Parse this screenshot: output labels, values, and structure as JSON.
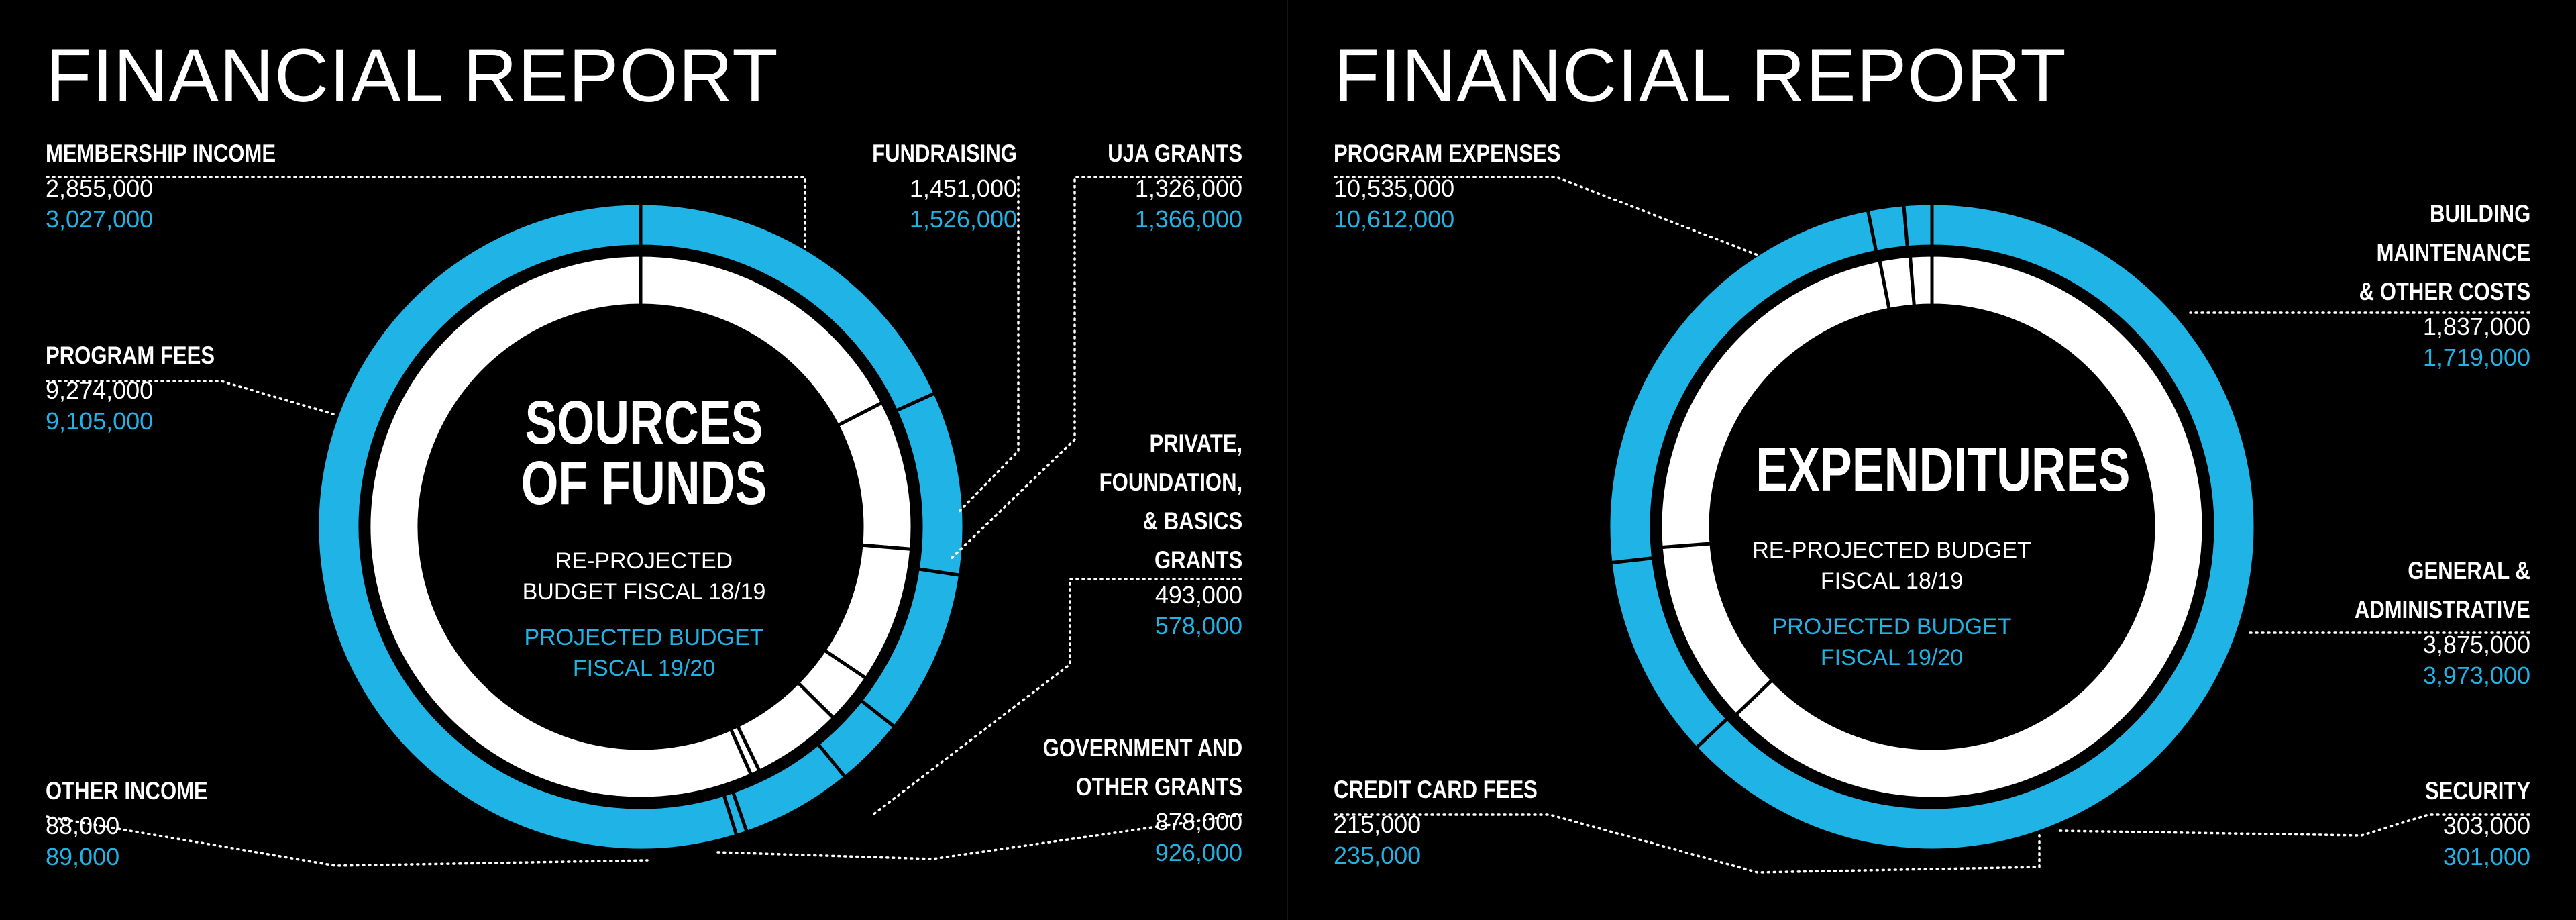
{
  "colors": {
    "accent": "#1fb3e6",
    "background": "#000000",
    "ring_inner": "#ffffff",
    "text": "#ffffff"
  },
  "sources": {
    "title": "FINANCIAL REPORT",
    "center_title_1": "SOURCES",
    "center_title_2": "OF FUNDS",
    "legend_white_1": "RE-PROJECTED",
    "legend_white_2": "BUDGET FISCAL 18/19",
    "legend_blue_1": "PROJECTED BUDGET",
    "legend_blue_2": "FISCAL 19/20",
    "items": [
      {
        "name_lines": [
          "MEMBERSHIP INCOME"
        ],
        "value_1819": "2,855,000",
        "value_1920": "3,027,000"
      },
      {
        "name_lines": [
          "FUNDRAISING"
        ],
        "value_1819": "1,451,000",
        "value_1920": "1,526,000"
      },
      {
        "name_lines": [
          "UJA GRANTS"
        ],
        "value_1819": "1,326,000",
        "value_1920": "1,366,000"
      },
      {
        "name_lines": [
          "PRIVATE,",
          "FOUNDATION,",
          "& BASICS",
          "GRANTS"
        ],
        "value_1819": "493,000",
        "value_1920": "578,000"
      },
      {
        "name_lines": [
          "GOVERNMENT AND",
          "OTHER GRANTS"
        ],
        "value_1819": "878,000",
        "value_1920": "926,000"
      },
      {
        "name_lines": [
          "OTHER INCOME"
        ],
        "value_1819": "88,000",
        "value_1920": "89,000"
      },
      {
        "name_lines": [
          "PROGRAM FEES"
        ],
        "value_1819": "9,274,000",
        "value_1920": "9,105,000"
      }
    ]
  },
  "expenditures": {
    "title": "FINANCIAL REPORT",
    "center_title_1": "EXPENDITURES",
    "legend_white_1": "RE-PROJECTED BUDGET",
    "legend_white_2": "FISCAL 18/19",
    "legend_blue_1": "PROJECTED BUDGET",
    "legend_blue_2": "FISCAL 19/20",
    "items": [
      {
        "name_lines": [
          "PROGRAM EXPENSES"
        ],
        "value_1819": "10,535,000",
        "value_1920": "10,612,000"
      },
      {
        "name_lines": [
          "BUILDING",
          "MAINTENANCE",
          "& OTHER COSTS"
        ],
        "value_1819": "1,837,000",
        "value_1920": "1,719,000"
      },
      {
        "name_lines": [
          "GENERAL &",
          "ADMINISTRATIVE"
        ],
        "value_1819": "3,875,000",
        "value_1920": "3,973,000"
      },
      {
        "name_lines": [
          "SECURITY"
        ],
        "value_1819": "303,000",
        "value_1920": "301,000"
      },
      {
        "name_lines": [
          "CREDIT CARD FEES"
        ],
        "value_1819": "215,000",
        "value_1920": "235,000"
      }
    ]
  },
  "chart_data": [
    {
      "type": "pie",
      "title": "SOURCES OF FUNDS",
      "categories": [
        "MEMBERSHIP INCOME",
        "FUNDRAISING",
        "UJA GRANTS",
        "PRIVATE, FOUNDATION, & BASICS GRANTS",
        "GOVERNMENT AND OTHER GRANTS",
        "OTHER INCOME",
        "PROGRAM FEES"
      ],
      "series": [
        {
          "name": "RE-PROJECTED BUDGET FISCAL 18/19",
          "values": [
            2855000,
            1451000,
            1326000,
            493000,
            878000,
            88000,
            9274000
          ]
        },
        {
          "name": "PROJECTED BUDGET FISCAL 19/20",
          "values": [
            3027000,
            1526000,
            1366000,
            578000,
            926000,
            89000,
            9105000
          ]
        }
      ]
    },
    {
      "type": "pie",
      "title": "EXPENDITURES",
      "categories": [
        "PROGRAM EXPENSES",
        "BUILDING MAINTENANCE & OTHER COSTS",
        "GENERAL & ADMINISTRATIVE",
        "SECURITY",
        "CREDIT CARD FEES"
      ],
      "series": [
        {
          "name": "RE-PROJECTED BUDGET FISCAL 18/19",
          "values": [
            10535000,
            1837000,
            3875000,
            303000,
            215000
          ]
        },
        {
          "name": "PROJECTED BUDGET FISCAL 19/20",
          "values": [
            10612000,
            1719000,
            3973000,
            301000,
            235000
          ]
        }
      ]
    }
  ]
}
